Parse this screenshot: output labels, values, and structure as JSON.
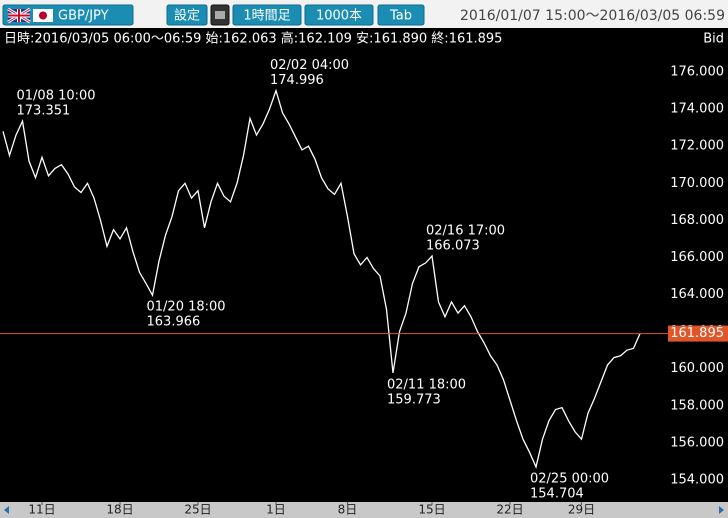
{
  "toolbar": {
    "pair": "GBP/JPY",
    "buttons": [
      "設定",
      "1時間足",
      "1000本",
      "Tab"
    ],
    "range": "2016/01/07 15:00〜2016/03/05 06:59"
  },
  "chart_data": {
    "type": "line",
    "info": "日時:2016/03/05 06:00〜06:59 始:162.063 高:162.109 安:161.890 終:161.895",
    "price_side": "Bid",
    "categories": [
      null,
      null,
      null,
      null,
      null,
      null,
      "11日",
      null,
      null,
      null,
      null,
      null,
      null,
      null,
      null,
      null,
      null,
      null,
      "18日",
      null,
      null,
      null,
      null,
      null,
      null,
      null,
      null,
      null,
      null,
      null,
      "25日",
      null,
      null,
      null,
      null,
      null,
      null,
      null,
      null,
      null,
      null,
      null,
      "1日",
      null,
      null,
      null,
      null,
      null,
      null,
      null,
      null,
      null,
      null,
      "8日",
      null,
      null,
      null,
      null,
      null,
      null,
      null,
      null,
      null,
      null,
      null,
      null,
      "15日",
      null,
      null,
      null,
      null,
      null,
      null,
      null,
      null,
      null,
      null,
      null,
      "22日",
      null,
      null,
      null,
      null,
      null,
      null,
      null,
      null,
      null,
      null,
      "29日",
      null,
      null,
      null,
      null,
      null,
      null,
      null,
      null,
      null
    ],
    "series": [
      {
        "name": "GBP/JPY",
        "color": "#ffffff",
        "values": [
          172.8,
          171.5,
          172.6,
          173.351,
          171.2,
          170.3,
          171.4,
          170.4,
          170.8,
          171.0,
          170.5,
          169.8,
          169.5,
          170.0,
          169.2,
          168.0,
          166.6,
          167.5,
          167.0,
          167.6,
          166.3,
          165.2,
          164.6,
          163.966,
          165.8,
          167.2,
          168.2,
          169.6,
          170.0,
          169.2,
          169.6,
          167.6,
          169.0,
          170.0,
          169.3,
          169.0,
          170.0,
          171.5,
          173.5,
          172.6,
          173.2,
          174.0,
          174.996,
          173.8,
          173.2,
          172.5,
          171.8,
          172.0,
          171.3,
          170.3,
          169.7,
          169.4,
          170.0,
          168.2,
          166.2,
          165.6,
          166.0,
          165.4,
          165.0,
          163.2,
          159.773,
          162.0,
          163.0,
          164.6,
          165.5,
          165.7,
          166.073,
          163.6,
          162.8,
          163.6,
          163.0,
          163.4,
          162.8,
          162.0,
          161.4,
          160.7,
          160.2,
          159.4,
          158.3,
          157.2,
          156.2,
          155.5,
          154.704,
          156.2,
          157.2,
          157.8,
          157.9,
          157.2,
          156.6,
          156.2,
          157.6,
          158.4,
          159.3,
          160.2,
          160.6,
          160.7,
          161.0,
          161.1,
          161.895
        ]
      }
    ],
    "ylim": [
      153,
      177
    ],
    "yticks": [
      {
        "value": 154,
        "label": "154.000"
      },
      {
        "value": 156,
        "label": "156.000"
      },
      {
        "value": 158,
        "label": "158.000"
      },
      {
        "value": 160,
        "label": "160.000"
      },
      {
        "value": 162,
        "label": "162.000"
      },
      {
        "value": 164,
        "label": "164.000"
      },
      {
        "value": 166,
        "label": "166.000"
      },
      {
        "value": 168,
        "label": "168.000"
      },
      {
        "value": 170,
        "label": "170.000"
      },
      {
        "value": 172,
        "label": "172.000"
      },
      {
        "value": 174,
        "label": "174.000"
      },
      {
        "value": 176,
        "label": "176.000"
      }
    ],
    "grid": false,
    "last_line_color": "#e0552a",
    "annotations": [
      {
        "time": "01/08 10:00",
        "value": 173.351,
        "position": "above"
      },
      {
        "time": "01/20 18:00",
        "value": 163.966,
        "position": "below"
      },
      {
        "time": "02/02 04:00",
        "value": 174.996,
        "position": "above"
      },
      {
        "time": "02/11 18:00",
        "value": 159.773,
        "position": "below"
      },
      {
        "time": "02/16 17:00",
        "value": 166.073,
        "position": "above"
      },
      {
        "time": "02/25 00:00",
        "value": 154.704,
        "position": "below"
      }
    ]
  }
}
